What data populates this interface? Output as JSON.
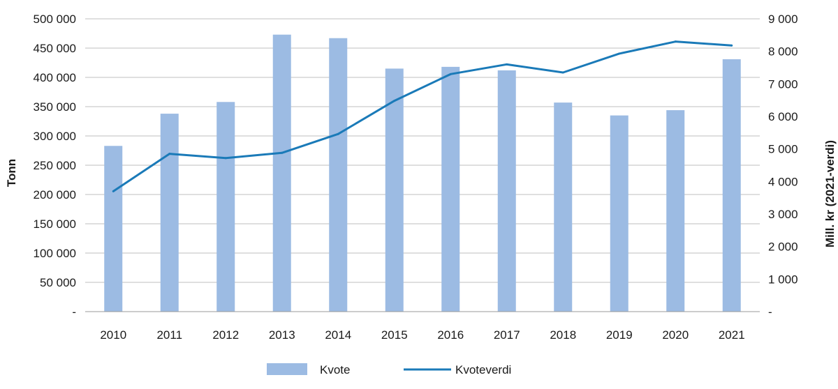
{
  "chart_data": {
    "type": "bar",
    "categories": [
      "2010",
      "2011",
      "2012",
      "2013",
      "2014",
      "2015",
      "2016",
      "2017",
      "2018",
      "2019",
      "2020",
      "2021"
    ],
    "series": [
      {
        "name": "Kvote",
        "type": "bar",
        "axis": "left",
        "color": "#9cbbe3",
        "values": [
          283000,
          338000,
          358000,
          473000,
          467000,
          415000,
          418000,
          412000,
          357000,
          335000,
          344000,
          431000
        ]
      },
      {
        "name": "Kvoteverdi",
        "type": "line",
        "axis": "right",
        "color": "#1a7ab8",
        "values": [
          3700,
          4850,
          4720,
          4880,
          5460,
          6480,
          7300,
          7600,
          7350,
          7930,
          8300,
          8180
        ]
      }
    ],
    "ylabel": "Tonn",
    "y2label": "Mill. kr (2021-verdi)",
    "ylim": [
      0,
      500000
    ],
    "y2lim": [
      0,
      9000
    ],
    "y_ticks": [
      "-",
      "50 000",
      "100 000",
      "150 000",
      "200 000",
      "250 000",
      "300 000",
      "350 000",
      "400 000",
      "450 000",
      "500 000"
    ],
    "y2_ticks": [
      "-",
      "1 000",
      "2 000",
      "3 000",
      "4 000",
      "5 000",
      "6 000",
      "7 000",
      "8 000",
      "9 000"
    ],
    "grid": true,
    "legend_position": "bottom-center"
  }
}
